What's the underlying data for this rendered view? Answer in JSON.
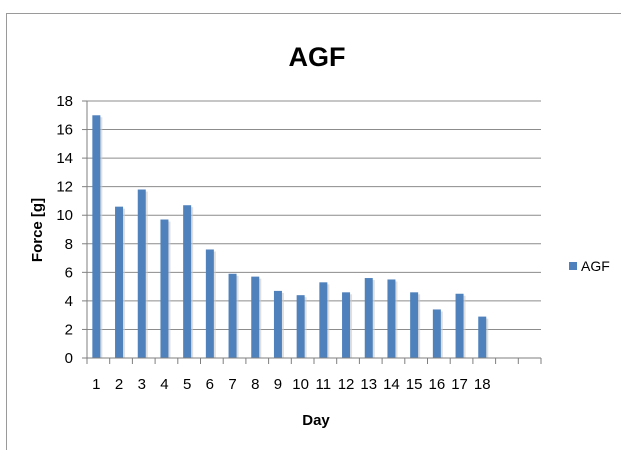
{
  "chart_data": {
    "type": "bar",
    "title": "AGF",
    "xlabel": "Day",
    "ylabel": "Force [g]",
    "ylim": [
      0,
      18
    ],
    "yticks": [
      0,
      2,
      4,
      6,
      8,
      10,
      12,
      14,
      16,
      18
    ],
    "categories": [
      "1",
      "2",
      "3",
      "4",
      "5",
      "6",
      "7",
      "8",
      "9",
      "10",
      "11",
      "12",
      "13",
      "14",
      "15",
      "16",
      "17",
      "18"
    ],
    "empty_slots": 2,
    "grid": true,
    "legend_position": "right",
    "series": [
      {
        "name": "AGF",
        "color": "#4f81bd",
        "values": [
          17.0,
          10.6,
          11.8,
          9.7,
          10.7,
          7.6,
          5.9,
          5.7,
          4.7,
          4.4,
          5.3,
          4.6,
          5.6,
          5.5,
          4.6,
          3.4,
          4.5,
          2.9
        ]
      }
    ]
  }
}
